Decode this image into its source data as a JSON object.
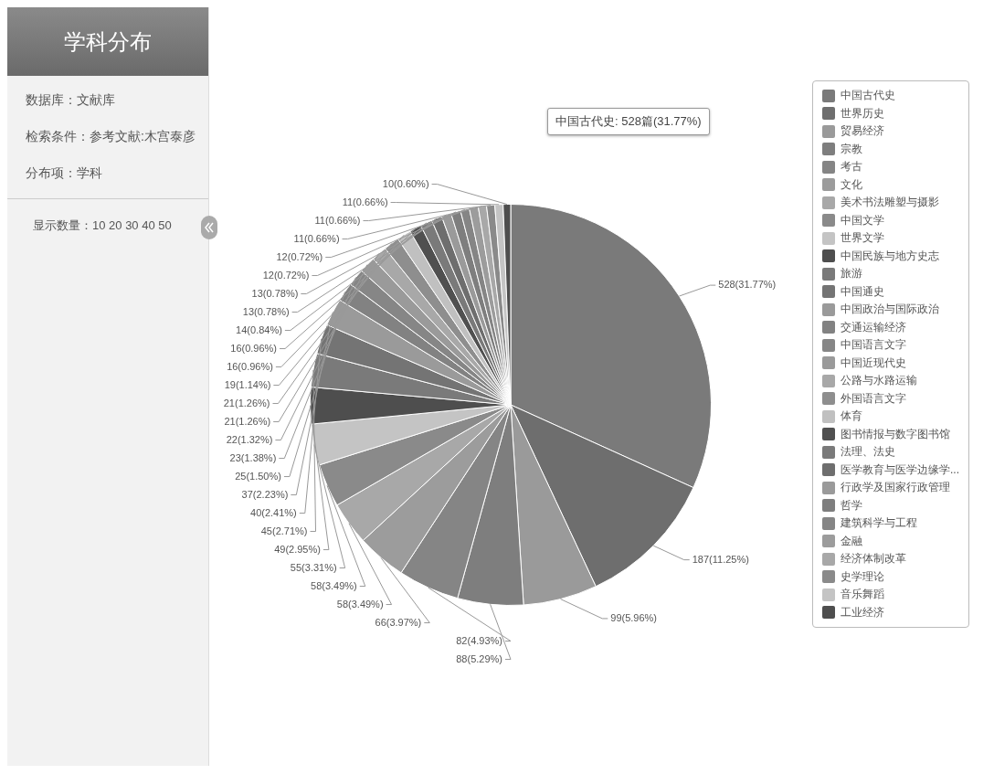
{
  "chart_data": {
    "type": "pie",
    "title": "学科分布",
    "categories": [
      "中国古代史",
      "世界历史",
      "贸易经济",
      "宗教",
      "考古",
      "文化",
      "美术书法雕塑与摄影",
      "中国文学",
      "世界文学",
      "中国民族与地方史志",
      "旅游",
      "中国通史",
      "中国政治与国际政治",
      "交通运输经济",
      "中国语言文字",
      "中国近现代史",
      "公路与水路运输",
      "外国语言文字",
      "体育",
      "图书情报与数字图书馆",
      "法理、法史",
      "医学教育与医学边缘学...",
      "行政学及国家行政管理",
      "哲学",
      "建筑科学与工程",
      "金融",
      "经济体制改革",
      "史学理论",
      "音乐舞蹈",
      "工业经济"
    ],
    "values": [
      528,
      187,
      99,
      88,
      82,
      66,
      58,
      58,
      55,
      49,
      45,
      40,
      37,
      25,
      23,
      22,
      21,
      21,
      19,
      16,
      16,
      14,
      13,
      13,
      12,
      12,
      11,
      11,
      11,
      10
    ],
    "colors": [
      "#7a7a7a",
      "#6e6e6e",
      "#9a9a9a",
      "#7e7e7e",
      "#858585",
      "#9c9c9c",
      "#a8a8a8",
      "#8a8a8a",
      "#c4c4c4",
      "#4e4e4e",
      "#7a7a7a",
      "#747474",
      "#9a9a9a",
      "#828282",
      "#868686",
      "#9a9a9a",
      "#a8a8a8",
      "#8e8e8e",
      "#c0c0c0",
      "#505050",
      "#7a7a7a",
      "#6e6e6e",
      "#9a9a9a",
      "#7e7e7e",
      "#858585",
      "#9c9c9c",
      "#a8a8a8",
      "#8a8a8a",
      "#c4c4c4",
      "#4e4e4e"
    ],
    "value_labels": [
      "528(31.77%)",
      "187(11.25%)",
      "99(5.96%)",
      "88(5.29%)",
      "82(4.93%)",
      "66(3.97%)",
      "58(3.49%)",
      "58(3.49%)",
      "55(3.31%)",
      "49(2.95%)",
      "45(2.71%)",
      "40(2.41%)",
      "37(2.23%)",
      "25(1.50%)",
      "23(1.38%)",
      "22(1.32%)",
      "21(1.26%)",
      "21(1.26%)",
      "19(1.14%)",
      "16(0.96%)",
      "16(0.96%)",
      "14(0.84%)",
      "13(0.78%)",
      "13(0.78%)",
      "12(0.72%)",
      "12(0.72%)",
      "11(0.66%)",
      "11(0.66%)",
      "11(0.66%)",
      "10(0.60%)"
    ],
    "legend": "right",
    "annotations": [
      "数据库：文献库",
      "检索条件：参考文献:木宫泰彦",
      "分布项：学科",
      "显示数量：10 20 30 40 50",
      "中国古代史: 528篇(31.77%)"
    ]
  }
}
